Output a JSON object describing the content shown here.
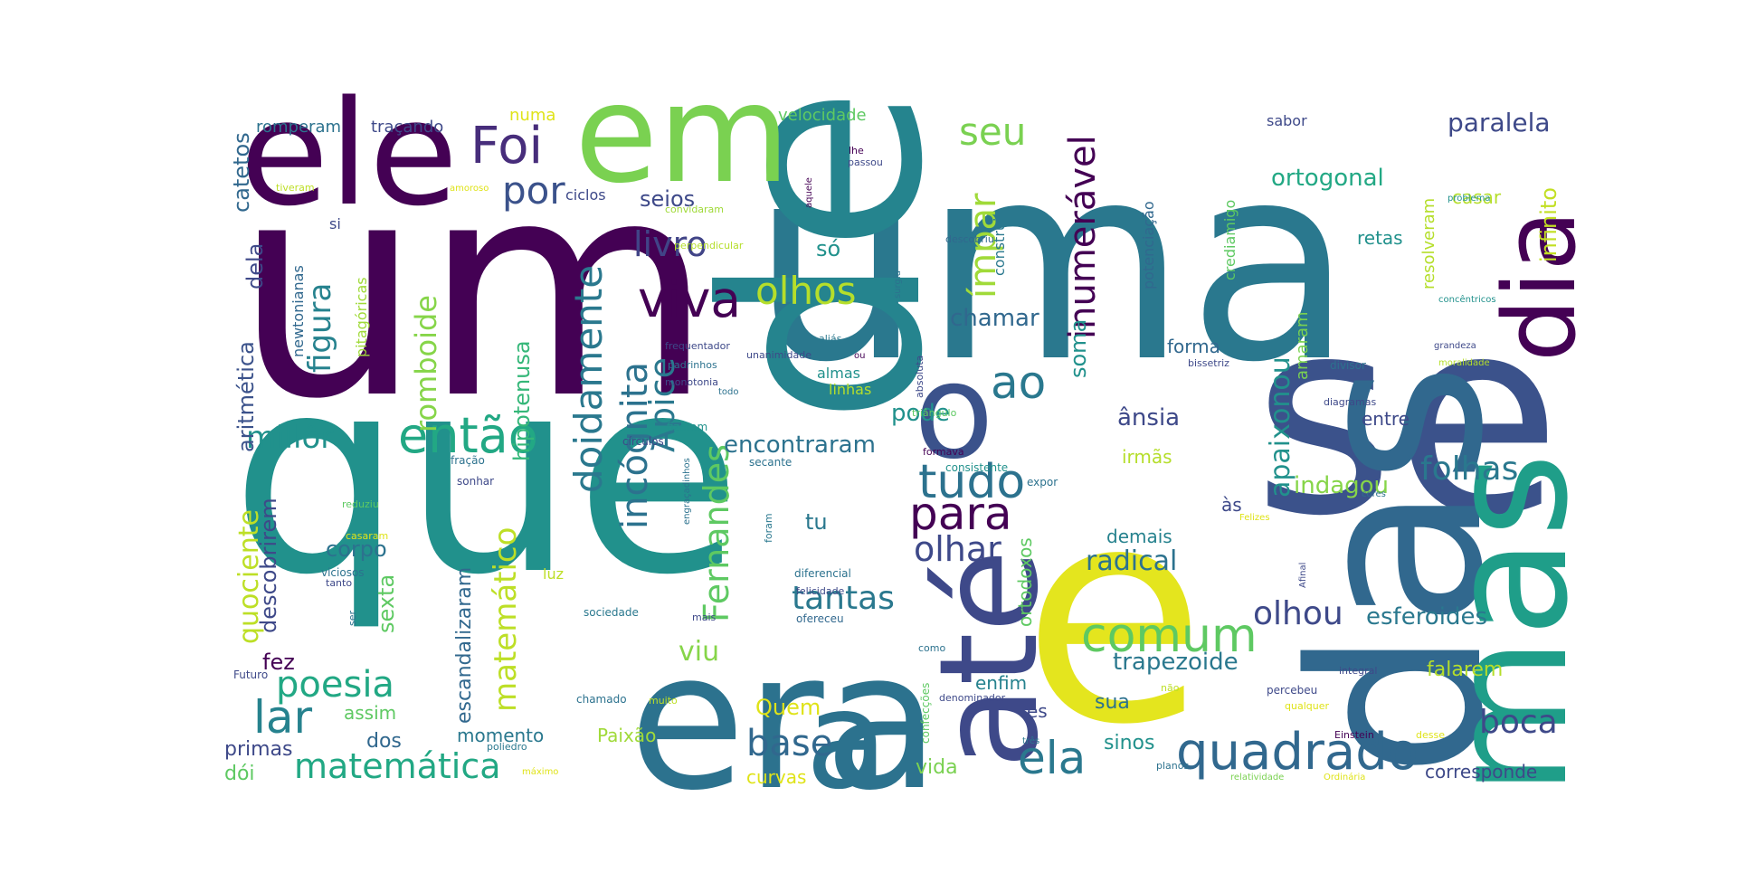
{
  "words": [
    {
      "text": "um",
      "color": "#440154"
    },
    {
      "text": "que",
      "color": "#21918c"
    },
    {
      "text": "uma",
      "color": "#2a788e"
    },
    {
      "text": "e",
      "color": "#e4e51e"
    },
    {
      "text": "de",
      "color": "#25848e"
    },
    {
      "text": "se",
      "color": "#3b528b"
    },
    {
      "text": "das",
      "color": "#31688e"
    },
    {
      "text": "era",
      "color": "#2c728e"
    },
    {
      "text": "ele",
      "color": "#440154"
    },
    {
      "text": "em",
      "color": "#7ad151"
    },
    {
      "text": "mas",
      "color": "#1f9e89"
    },
    {
      "text": "o",
      "color": "#3b528b"
    },
    {
      "text": "até",
      "color": "#3e4989"
    },
    {
      "text": "a",
      "color": "#2c728e"
    },
    {
      "text": "dia",
      "color": "#440154"
    },
    {
      "text": "Foi",
      "color": "#472d7b"
    },
    {
      "text": "então",
      "color": "#22a884"
    },
    {
      "text": "viva",
      "color": "#440154"
    },
    {
      "text": "olhos",
      "color": "#b5de2b"
    },
    {
      "text": "livro",
      "color": "#414487"
    },
    {
      "text": "por",
      "color": "#3b528b"
    },
    {
      "text": "seu",
      "color": "#7ad151"
    },
    {
      "text": "ímpar",
      "color": "#a0da39"
    },
    {
      "text": "inumerável",
      "color": "#440154"
    },
    {
      "text": "ao",
      "color": "#2a788e"
    },
    {
      "text": "tudo",
      "color": "#2c728e"
    },
    {
      "text": "para",
      "color": "#440154"
    },
    {
      "text": "comum",
      "color": "#5ec962"
    },
    {
      "text": "quadrado",
      "color": "#31688e"
    },
    {
      "text": "ela",
      "color": "#2a788e"
    },
    {
      "text": "olhar",
      "color": "#3e4989"
    },
    {
      "text": "tantas",
      "color": "#2a788e"
    },
    {
      "text": "base",
      "color": "#31688e"
    },
    {
      "text": "incógnita",
      "color": "#2c728e"
    },
    {
      "text": "doidamente",
      "color": "#2a788e"
    },
    {
      "text": "Ápice",
      "color": "#2a788e"
    },
    {
      "text": "Fernandes",
      "color": "#5ec962"
    },
    {
      "text": "matemático",
      "color": "#bddf26"
    },
    {
      "text": "poesia",
      "color": "#22a884"
    },
    {
      "text": "lar",
      "color": "#26828e"
    },
    {
      "text": "matemática",
      "color": "#22a884"
    },
    {
      "text": "millôr",
      "color": "#21918c"
    },
    {
      "text": "quociente",
      "color": "#bddf26"
    },
    {
      "text": "aritmética",
      "color": "#3b528b"
    },
    {
      "text": "figura",
      "color": "#26828e"
    },
    {
      "text": "romboide",
      "color": "#86d549"
    },
    {
      "text": "hipotenusa",
      "color": "#35b779"
    },
    {
      "text": "apaixonou",
      "color": "#21918c"
    },
    {
      "text": "folhas",
      "color": "#2a788e"
    },
    {
      "text": "olhou",
      "color": "#3e4989"
    },
    {
      "text": "esferoides",
      "color": "#2a788e"
    },
    {
      "text": "boca",
      "color": "#3e4989"
    },
    {
      "text": "paralela",
      "color": "#3e4989"
    },
    {
      "text": "ortogonal",
      "color": "#22a884"
    },
    {
      "text": "infinito",
      "color": "#c2df23"
    },
    {
      "text": "radical",
      "color": "#2c728e"
    },
    {
      "text": "trapezoide",
      "color": "#2a788e"
    },
    {
      "text": "indagou",
      "color": "#86d549"
    },
    {
      "text": "corpo",
      "color": "#2c728e"
    },
    {
      "text": "descobrirem",
      "color": "#3e4989"
    },
    {
      "text": "catetos",
      "color": "#31688e"
    },
    {
      "text": "dela",
      "color": "#3e4989"
    },
    {
      "text": "encontraram",
      "color": "#2c728e"
    },
    {
      "text": "pode",
      "color": "#21918c"
    },
    {
      "text": "chamar",
      "color": "#31688e"
    },
    {
      "text": "ânsia",
      "color": "#3e4989"
    },
    {
      "text": "soma",
      "color": "#21918c"
    },
    {
      "text": "seios",
      "color": "#3e4989"
    },
    {
      "text": "só",
      "color": "#21918c"
    },
    {
      "text": "viu",
      "color": "#86d549"
    },
    {
      "text": "tu",
      "color": "#2a788e"
    },
    {
      "text": "Quem",
      "color": "#dfe318"
    },
    {
      "text": "fez",
      "color": "#440154"
    },
    {
      "text": "sexta",
      "color": "#5ec962"
    },
    {
      "text": "escandalizaram",
      "color": "#31688e"
    },
    {
      "text": "dos",
      "color": "#31688e"
    },
    {
      "text": "momento",
      "color": "#2a788e"
    },
    {
      "text": "assim",
      "color": "#5ec962"
    },
    {
      "text": "primas",
      "color": "#3e4989"
    },
    {
      "text": "dói",
      "color": "#5ec962"
    },
    {
      "text": "Paixão",
      "color": "#a0da39"
    },
    {
      "text": "curvas",
      "color": "#dfe318"
    },
    {
      "text": "vida",
      "color": "#7ad151"
    },
    {
      "text": "sinos",
      "color": "#21918c"
    },
    {
      "text": "sua",
      "color": "#2c728e"
    },
    {
      "text": "forma",
      "color": "#31688e"
    },
    {
      "text": "demais",
      "color": "#26828e"
    },
    {
      "text": "falarem",
      "color": "#b5de2b"
    },
    {
      "text": "corresponde",
      "color": "#3e4989"
    },
    {
      "text": "ortodoxos",
      "color": "#5ec962"
    },
    {
      "text": "enfim",
      "color": "#26828e"
    },
    {
      "text": "és",
      "color": "#3e4989"
    },
    {
      "text": "irmãs",
      "color": "#b5de2b"
    },
    {
      "text": "às",
      "color": "#3e4989"
    },
    {
      "text": "entre",
      "color": "#3e4989"
    },
    {
      "text": "retas",
      "color": "#21918c"
    },
    {
      "text": "casar",
      "color": "#b5de2b"
    },
    {
      "text": "resolveram",
      "color": "#b5de2b"
    },
    {
      "text": "amaram",
      "color": "#7ad151"
    },
    {
      "text": "velocidade",
      "color": "#5ec962"
    },
    {
      "text": "romperam",
      "color": "#2c728e"
    },
    {
      "text": "traçando",
      "color": "#3e4989"
    },
    {
      "text": "numa",
      "color": "#dfe318"
    },
    {
      "text": "ciclos",
      "color": "#3e4989"
    },
    {
      "text": "sabor",
      "color": "#3e4989"
    },
    {
      "text": "construir",
      "color": "#2a788e"
    },
    {
      "text": "potenciação",
      "color": "#31688e"
    },
    {
      "text": "crediamigo",
      "color": "#5ec962"
    },
    {
      "text": "newtonianas",
      "color": "#31688e"
    },
    {
      "text": "pitagóricas",
      "color": "#a0da39"
    },
    {
      "text": "si",
      "color": "#3e4989"
    },
    {
      "text": "linhas",
      "color": "#b5de2b"
    },
    {
      "text": "almas",
      "color": "#21918c"
    },
    {
      "text": "luz",
      "color": "#bddf26"
    },
    {
      "text": "sociedade",
      "color": "#2a788e"
    },
    {
      "text": "ofereceu",
      "color": "#31688e"
    },
    {
      "text": "diferencial",
      "color": "#2c728e"
    },
    {
      "text": "felicidade",
      "color": "#3e4989"
    },
    {
      "text": "poliedro",
      "color": "#2a788e"
    },
    {
      "text": "máximo",
      "color": "#dfe318"
    },
    {
      "text": "chamado",
      "color": "#2c728e"
    },
    {
      "text": "muito",
      "color": "#bddf26"
    },
    {
      "text": "Futuro",
      "color": "#3e4989"
    },
    {
      "text": "ser",
      "color": "#2c728e"
    },
    {
      "text": "tanto",
      "color": "#3e4989"
    },
    {
      "text": "viciosos",
      "color": "#2c728e"
    },
    {
      "text": "casaram",
      "color": "#dfe318"
    },
    {
      "text": "reduziu",
      "color": "#5ec962"
    },
    {
      "text": "fração",
      "color": "#2c728e"
    },
    {
      "text": "sonhar",
      "color": "#3e4989"
    },
    {
      "text": "círculos",
      "color": "#3e4989"
    },
    {
      "text": "fizeram",
      "color": "#21918c"
    },
    {
      "text": "monotonia",
      "color": "#3e4989"
    },
    {
      "text": "padrinhos",
      "color": "#2c728e"
    },
    {
      "text": "frequentador",
      "color": "#3e4989"
    },
    {
      "text": "todo",
      "color": "#2c728e"
    },
    {
      "text": "unanimidade",
      "color": "#3e4989"
    },
    {
      "text": "ou",
      "color": "#440154"
    },
    {
      "text": "aliás",
      "color": "#2a788e"
    },
    {
      "text": "absoluta",
      "color": "#3e4989"
    },
    {
      "text": "triângulo",
      "color": "#5ec962"
    },
    {
      "text": "formava",
      "color": "#440154"
    },
    {
      "text": "consistente",
      "color": "#21918c"
    },
    {
      "text": "expor",
      "color": "#2c728e"
    },
    {
      "text": "secante",
      "color": "#2c728e"
    },
    {
      "text": "engraçadinhos",
      "color": "#2c728e"
    },
    {
      "text": "foram",
      "color": "#2a788e"
    },
    {
      "text": "mais",
      "color": "#3e4989"
    },
    {
      "text": "como",
      "color": "#2c728e"
    },
    {
      "text": "confecções",
      "color": "#5ec962"
    },
    {
      "text": "denominador",
      "color": "#3e4989"
    },
    {
      "text": "não",
      "color": "#bddf26"
    },
    {
      "text": "percebeu",
      "color": "#3e4989"
    },
    {
      "text": "qualquer",
      "color": "#dfe318"
    },
    {
      "text": "três",
      "color": "#2a788e"
    },
    {
      "text": "planos",
      "color": "#2c728e"
    },
    {
      "text": "Einstein",
      "color": "#440154"
    },
    {
      "text": "desse",
      "color": "#dfe318"
    },
    {
      "text": "relatividade",
      "color": "#7ad151"
    },
    {
      "text": "Ordinária",
      "color": "#dfe318"
    },
    {
      "text": "integral",
      "color": "#3e4989"
    },
    {
      "text": "Afinal",
      "color": "#3e4989"
    },
    {
      "text": "Felizes",
      "color": "#dfe318"
    },
    {
      "text": "cores",
      "color": "#2c728e"
    },
    {
      "text": "diagramas",
      "color": "#3e4989"
    },
    {
      "text": "divisor",
      "color": "#2c728e"
    },
    {
      "text": "bissetriz",
      "color": "#3e4989"
    },
    {
      "text": "moralidade",
      "color": "#b5de2b"
    },
    {
      "text": "grandeza",
      "color": "#3e4989"
    },
    {
      "text": "concêntricos",
      "color": "#21918c"
    },
    {
      "text": "problema",
      "color": "#21918c"
    },
    {
      "text": "descobriu",
      "color": "#31688e"
    },
    {
      "text": "surgiu",
      "color": "#2c728e"
    },
    {
      "text": "aquele",
      "color": "#440154"
    },
    {
      "text": "lhe",
      "color": "#440154"
    },
    {
      "text": "passou",
      "color": "#3e4989"
    },
    {
      "text": "convidaram",
      "color": "#a0da39"
    },
    {
      "text": "perpendicular",
      "color": "#b5de2b"
    },
    {
      "text": "tiveram",
      "color": "#bddf26"
    },
    {
      "text": "amoroso",
      "color": "#dfe318"
    }
  ]
}
